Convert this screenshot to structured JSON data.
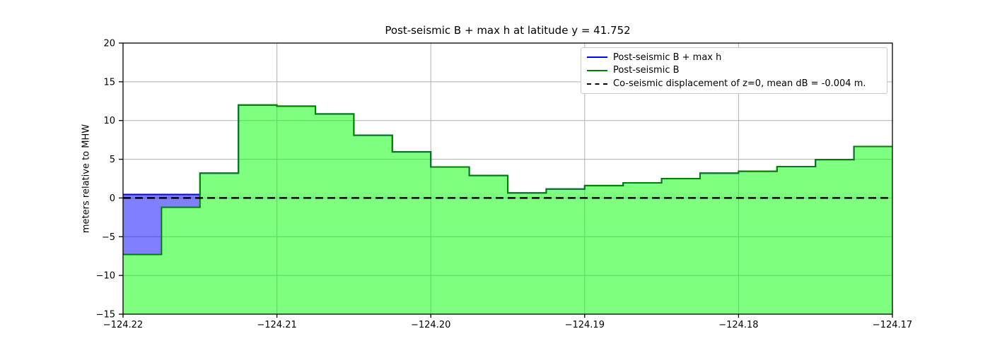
{
  "chart_data": {
    "type": "area",
    "title": "Post-seismic B + max h at latitude y = 41.752",
    "xlabel": "",
    "ylabel": "meters relative to MHW",
    "xlim": [
      -124.22,
      -124.17
    ],
    "ylim": [
      -15,
      20
    ],
    "grid": true,
    "grid_color": "#b0b0b0",
    "background_color": "#ffffff",
    "xticks": [
      -124.22,
      -124.21,
      -124.2,
      -124.19,
      -124.18,
      -124.17
    ],
    "xtick_labels": [
      "−124.22",
      "−124.21",
      "−124.20",
      "−124.19",
      "−124.18",
      "−124.17"
    ],
    "yticks": [
      -15,
      -10,
      -5,
      0,
      5,
      10,
      15,
      20
    ],
    "ytick_labels": [
      "−15",
      "−10",
      "−5",
      "0",
      "5",
      "10",
      "15",
      "20"
    ],
    "step_edges": [
      -124.22,
      -124.2175,
      -124.215,
      -124.2125,
      -124.21,
      -124.2075,
      -124.205,
      -124.2025,
      -124.2,
      -124.1975,
      -124.195,
      -124.1925,
      -124.19,
      -124.1875,
      -124.185,
      -124.1825,
      -124.18,
      -124.1775,
      -124.175,
      -124.1725,
      -124.17
    ],
    "series": [
      {
        "name": "Post-seismic B + max h",
        "color": "#0000ff",
        "fill": "rgba(0,0,255,0.5)",
        "values": [
          0.45,
          0.45,
          3.2,
          12.0,
          11.85,
          10.85,
          8.1,
          5.95,
          4.0,
          2.9,
          0.65,
          1.15,
          1.6,
          1.95,
          2.5,
          3.2,
          3.45,
          4.05,
          4.95,
          6.65
        ]
      },
      {
        "name": "Post-seismic B",
        "color": "#008000",
        "fill": "rgba(0,255,0,0.5)",
        "values": [
          -7.3,
          -1.2,
          3.2,
          12.0,
          11.85,
          10.85,
          8.1,
          5.95,
          4.0,
          2.9,
          0.65,
          1.15,
          1.6,
          1.95,
          2.5,
          3.2,
          3.45,
          4.05,
          4.95,
          6.65
        ]
      }
    ],
    "reference_line": {
      "label": "Co-seismic displacement of z=0, mean dB = -0.004 m.",
      "y": 0,
      "color": "#000000",
      "style": "dashed"
    },
    "legend_position": "upper right"
  }
}
